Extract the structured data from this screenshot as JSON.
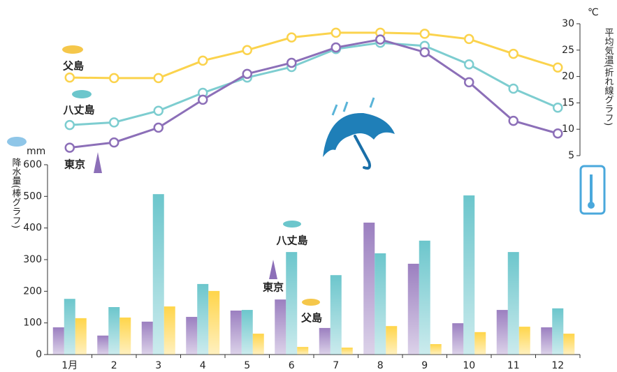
{
  "chart_data": {
    "type": "combo",
    "categories": [
      "1月",
      "2",
      "3",
      "4",
      "5",
      "6",
      "7",
      "8",
      "9",
      "10",
      "11",
      "12"
    ],
    "ylabel": "降水量(棒グラフ)",
    "yunit": "mm",
    "y2label": "平均気温(折れ線グラフ)",
    "y2unit": "℃",
    "ylim": [
      0,
      600
    ],
    "yticks": [
      0,
      100,
      200,
      300,
      400,
      500,
      600
    ],
    "y2lim": [
      5,
      30
    ],
    "y2ticks": [
      5,
      10,
      15,
      20,
      25,
      30
    ],
    "series": [
      {
        "name": "東京",
        "type": "bar",
        "color": "#9b7fc0",
        "values": [
          86,
          60,
          104,
          119,
          139,
          174,
          84,
          417,
          287,
          99,
          141,
          86
        ]
      },
      {
        "name": "八丈島",
        "type": "bar",
        "color": "#6cc6cc",
        "values": [
          176,
          150,
          507,
          223,
          141,
          324,
          251,
          320,
          360,
          503,
          324,
          146
        ]
      },
      {
        "name": "父島",
        "type": "bar",
        "color": "#ffd54a",
        "values": [
          115,
          117,
          152,
          201,
          66,
          24,
          22,
          90,
          33,
          71,
          88,
          66
        ]
      },
      {
        "name": "父島",
        "type": "line",
        "axis": "y2",
        "color": "#fbd34d",
        "values": [
          19.8,
          19.7,
          19.7,
          23.0,
          25.0,
          27.4,
          28.3,
          28.3,
          28.1,
          27.1,
          24.3,
          21.7
        ]
      },
      {
        "name": "八丈島",
        "type": "line",
        "axis": "y2",
        "color": "#7dcdd0",
        "values": [
          10.8,
          11.3,
          13.5,
          16.9,
          19.8,
          21.8,
          25.2,
          26.4,
          25.8,
          22.3,
          17.7,
          14.1
        ]
      },
      {
        "name": "東京",
        "type": "line",
        "axis": "y2",
        "color": "#8c6fb8",
        "values": [
          6.5,
          7.5,
          10.3,
          15.6,
          20.5,
          22.6,
          25.5,
          27.0,
          24.6,
          18.9,
          11.6,
          9.2
        ]
      }
    ]
  }
}
